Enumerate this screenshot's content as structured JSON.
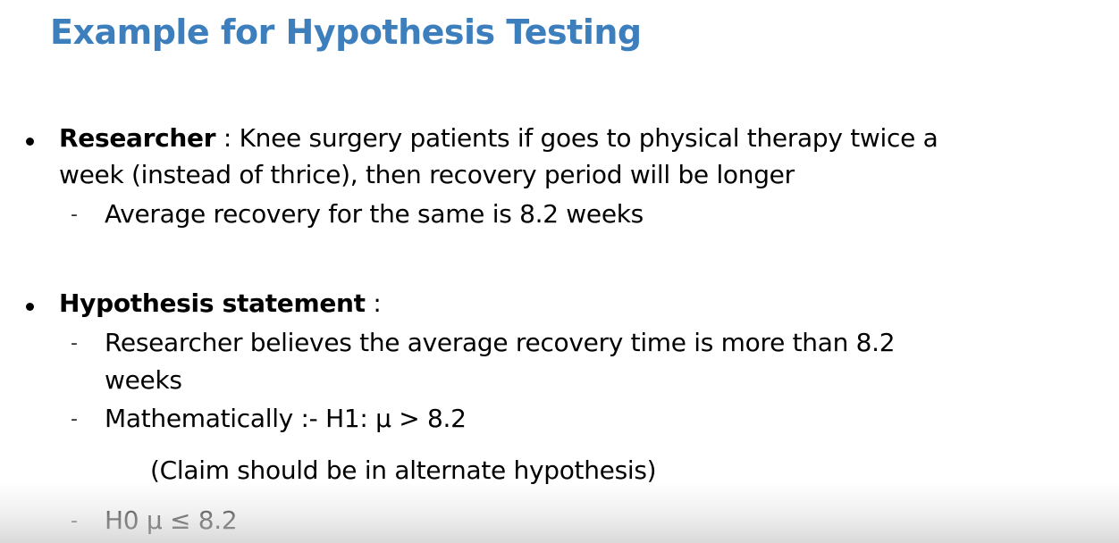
{
  "slide": {
    "title": "Example for Hypothesis Testing",
    "bullets": [
      {
        "heading": "Researcher",
        "separator": " : ",
        "text_line1": "Knee surgery patients if goes to physical therapy twice a",
        "text_line2": "week (instead of thrice), then recovery period will be longer",
        "subitems": [
          {
            "text": "Average recovery for the same is 8.2 weeks"
          }
        ]
      },
      {
        "heading": "Hypothesis statement",
        "separator": " :",
        "subitems": [
          {
            "line1": "Researcher believes the average recovery time is more than 8.2",
            "line2": "weeks"
          },
          {
            "text": "Mathematically :- H1: μ > 8.2",
            "note": "(Claim should be in alternate hypothesis)"
          },
          {
            "text": "H0 μ ≤ 8.2"
          }
        ]
      }
    ],
    "sub_marker": "-"
  }
}
